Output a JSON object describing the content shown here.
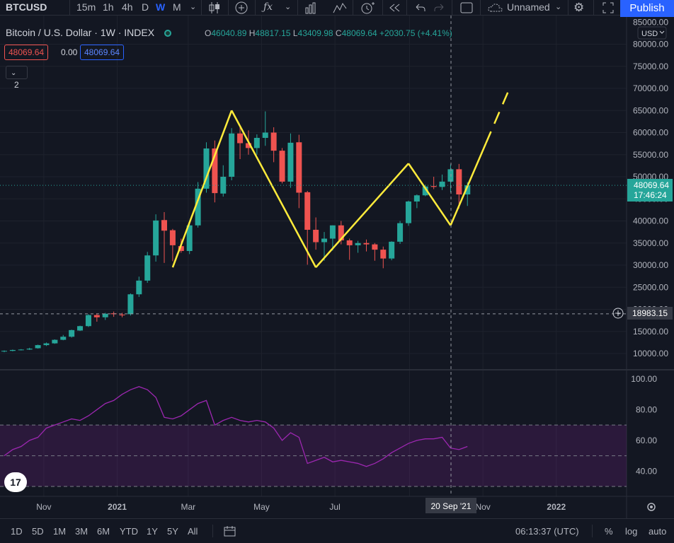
{
  "toolbar": {
    "symbol": "BTCUSD",
    "intervals": [
      "15m",
      "1h",
      "4h",
      "D",
      "W",
      "M"
    ],
    "active_interval": "W",
    "layout_name": "Unnamed",
    "publish_label": "Publish"
  },
  "legend": {
    "title": "Bitcoin / U.S. Dollar · 1W · INDEX",
    "open_key": "O",
    "open": "46040.89",
    "high_key": "H",
    "high": "48817.15",
    "low_key": "L",
    "low": "43409.98",
    "close_key": "C",
    "close": "48069.64",
    "change": "+2030.75 (+4.41%)",
    "bid": "48069.64",
    "spread": "0.00",
    "ask": "48069.64",
    "indicator_count": "2"
  },
  "price_axis": {
    "currency": "USD",
    "ticks": [
      "85000.00",
      "80000.00",
      "75000.00",
      "70000.00",
      "65000.00",
      "60000.00",
      "55000.00",
      "50000.00",
      "45000.00",
      "40000.00",
      "35000.00",
      "30000.00",
      "25000.00",
      "20000.00",
      "15000.00",
      "10000.00"
    ],
    "last_price_label": "48069.64",
    "countdown": "17:46:24",
    "crosshair_label": "18983.15"
  },
  "rsi_axis": {
    "ticks": [
      "100.00",
      "80.00",
      "60.00",
      "40.00"
    ]
  },
  "time_axis": {
    "labels": [
      "Nov",
      "2021",
      "Mar",
      "May",
      "Jul",
      "Sep",
      "Nov",
      "2022"
    ],
    "crosshair_label": "20 Sep '21"
  },
  "bottombar": {
    "ranges": [
      "1D",
      "5D",
      "1M",
      "3M",
      "6M",
      "YTD",
      "1Y",
      "5Y",
      "All"
    ],
    "clock": "06:13:37 (UTC)",
    "percent": "%",
    "log": "log",
    "auto": "auto"
  },
  "colors": {
    "up": "#26a69a",
    "down": "#ef5350",
    "drawing": "#ffeb3b",
    "rsi": "#9c27b0",
    "accent": "#2962ff"
  },
  "chart_data": {
    "type": "candlestick",
    "interval": "1W",
    "candles": [
      [
        10500,
        10700,
        10300,
        10600
      ],
      [
        10600,
        10900,
        10500,
        10800
      ],
      [
        10800,
        11000,
        10700,
        10900
      ],
      [
        10900,
        11300,
        10800,
        11100
      ],
      [
        11200,
        12000,
        11100,
        11900
      ],
      [
        11900,
        12500,
        11700,
        12300
      ],
      [
        12300,
        13200,
        12200,
        13100
      ],
      [
        13100,
        14200,
        13000,
        13800
      ],
      [
        13800,
        15400,
        13600,
        15300
      ],
      [
        15200,
        16300,
        15100,
        16200
      ],
      [
        16200,
        18900,
        16000,
        18700
      ],
      [
        18700,
        19100,
        17200,
        18200
      ],
      [
        18200,
        19200,
        17600,
        19000
      ],
      [
        19100,
        19500,
        18300,
        18900
      ],
      [
        18800,
        19200,
        18200,
        18700
      ],
      [
        18900,
        23600,
        18600,
        23400
      ],
      [
        23400,
        27400,
        22800,
        26500
      ],
      [
        26500,
        33000,
        26000,
        32200
      ],
      [
        32200,
        41500,
        30800,
        40100
      ],
      [
        40200,
        42000,
        30500,
        37800
      ],
      [
        37900,
        38200,
        30900,
        34500
      ],
      [
        34300,
        36000,
        32800,
        33200
      ],
      [
        33200,
        40000,
        32500,
        39000
      ],
      [
        39000,
        48800,
        38500,
        47300
      ],
      [
        47300,
        57800,
        46400,
        56400
      ],
      [
        56400,
        58200,
        44200,
        46300
      ],
      [
        46200,
        52600,
        45500,
        50000
      ],
      [
        50000,
        61000,
        49200,
        59800
      ],
      [
        59800,
        61700,
        54000,
        57600
      ],
      [
        57600,
        60500,
        55000,
        56500
      ],
      [
        56500,
        59600,
        55000,
        58800
      ],
      [
        58800,
        64800,
        57000,
        60000
      ],
      [
        60000,
        61200,
        53300,
        55900
      ],
      [
        55900,
        56500,
        48500,
        48900
      ],
      [
        48900,
        59800,
        47500,
        57700
      ],
      [
        57800,
        59500,
        42900,
        46400
      ],
      [
        46500,
        46800,
        30100,
        38000
      ],
      [
        38000,
        40800,
        33500,
        35200
      ],
      [
        35200,
        37500,
        31000,
        36000
      ],
      [
        36000,
        39000,
        33300,
        39000
      ],
      [
        39000,
        40000,
        34700,
        35600
      ],
      [
        35600,
        36000,
        31200,
        34500
      ],
      [
        34500,
        35500,
        32800,
        35000
      ],
      [
        35000,
        35800,
        33100,
        34700
      ],
      [
        34700,
        35000,
        31000,
        33500
      ],
      [
        33500,
        34200,
        29300,
        31500
      ],
      [
        31500,
        35400,
        31100,
        35300
      ],
      [
        35300,
        40000,
        34800,
        39500
      ],
      [
        39500,
        44600,
        38900,
        44400
      ],
      [
        44400,
        46000,
        42900,
        45800
      ],
      [
        45800,
        48200,
        45600,
        47800
      ],
      [
        47900,
        50000,
        47200,
        47700
      ],
      [
        47700,
        50500,
        47000,
        48900
      ],
      [
        48900,
        52800,
        46500,
        51700
      ],
      [
        51700,
        52900,
        42800,
        46000
      ],
      [
        46000,
        48800,
        43400,
        48069.64
      ]
    ],
    "drawing_path": [
      [
        "2021-02-22",
        29500
      ],
      [
        "2021-04-12",
        65000
      ],
      [
        "2021-06-21",
        29500
      ],
      [
        "2021-09-06",
        53000
      ],
      [
        "2021-10-11",
        39000
      ],
      [
        "2021-11-29",
        70000
      ]
    ],
    "rsi": [
      50,
      54,
      56,
      60,
      62,
      68,
      70,
      72,
      74,
      73,
      76,
      80,
      84,
      86,
      90,
      93,
      95,
      93,
      88,
      75,
      74,
      76,
      80,
      84,
      86,
      70,
      73,
      75,
      73,
      72,
      73,
      72,
      68,
      60,
      65,
      62,
      45,
      47,
      49,
      46,
      47,
      46,
      45,
      43,
      45,
      48,
      52,
      55,
      58,
      60,
      61,
      61,
      62,
      55,
      54,
      56
    ],
    "price_range": [
      8000,
      85000
    ],
    "rsi_range": [
      20,
      100
    ],
    "rsi_levels": [
      70,
      50,
      30
    ]
  }
}
